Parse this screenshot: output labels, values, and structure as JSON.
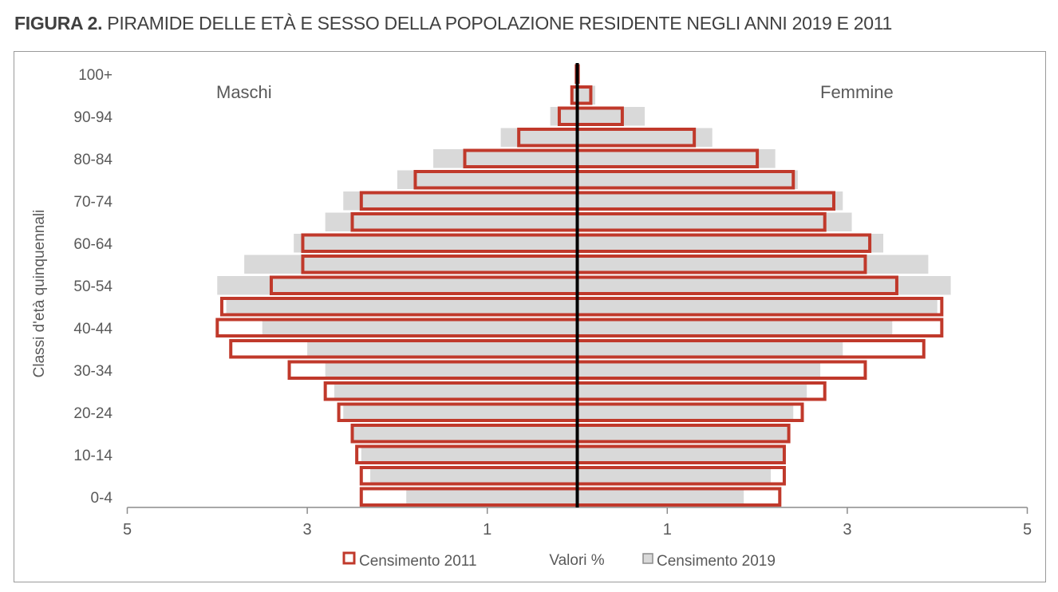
{
  "figure": {
    "label": "FIGURA 2.",
    "title": "PIRAMIDE DELLE ETÀ E SESSO DELLA POPOLAZIONE RESIDENTE NEGLI ANNI 2019 E 2011"
  },
  "chart_data": {
    "type": "bar",
    "orientation": "horizontal-population-pyramid",
    "ylabel": "Classi d'età quinquennali",
    "xlabel": "Valori %",
    "xlim": [
      -5,
      5
    ],
    "x_ticks": [
      "5",
      "3",
      "1",
      "1",
      "3",
      "5"
    ],
    "group_labels": {
      "left": "Maschi",
      "right": "Femmine"
    },
    "categories": [
      "0-4",
      "5-9",
      "10-14",
      "15-19",
      "20-24",
      "25-29",
      "30-34",
      "35-39",
      "40-44",
      "45-49",
      "50-54",
      "55-59",
      "60-64",
      "65-69",
      "70-74",
      "75-79",
      "80-84",
      "85-89",
      "90-94",
      "95-99",
      "100+"
    ],
    "category_labels": [
      "0-4",
      "",
      "10-14",
      "",
      "20-24",
      "",
      "30-34",
      "",
      "40-44",
      "",
      "50-54",
      "",
      "60-64",
      "",
      "70-74",
      "",
      "80-84",
      "",
      "90-94",
      "",
      "100+"
    ],
    "legend_position": "bottom",
    "series": [
      {
        "name": "Censimento 2019",
        "style": "filled",
        "color": "#d9d9d9",
        "border": "#a6a6a6",
        "male": [
          1.9,
          2.3,
          2.4,
          2.5,
          2.6,
          2.7,
          2.8,
          3.0,
          3.5,
          3.9,
          4.0,
          3.7,
          3.15,
          2.8,
          2.6,
          2.0,
          1.6,
          0.85,
          0.3,
          0.07,
          0.01
        ],
        "female": [
          1.85,
          2.15,
          2.3,
          2.35,
          2.4,
          2.55,
          2.7,
          2.95,
          3.5,
          4.0,
          4.15,
          3.9,
          3.4,
          3.05,
          2.95,
          2.45,
          2.2,
          1.5,
          0.75,
          0.2,
          0.02
        ]
      },
      {
        "name": "Censimento 2011",
        "style": "outline",
        "color": "#c0392b",
        "male": [
          2.4,
          2.4,
          2.45,
          2.5,
          2.65,
          2.8,
          3.2,
          3.85,
          4.0,
          3.95,
          3.4,
          3.05,
          3.05,
          2.5,
          2.4,
          1.8,
          1.25,
          0.65,
          0.2,
          0.06,
          0.01
        ],
        "female": [
          2.25,
          2.3,
          2.3,
          2.35,
          2.5,
          2.75,
          3.2,
          3.85,
          4.05,
          4.05,
          3.55,
          3.2,
          3.25,
          2.75,
          2.85,
          2.4,
          2.0,
          1.3,
          0.5,
          0.15,
          0.01
        ]
      }
    ]
  }
}
